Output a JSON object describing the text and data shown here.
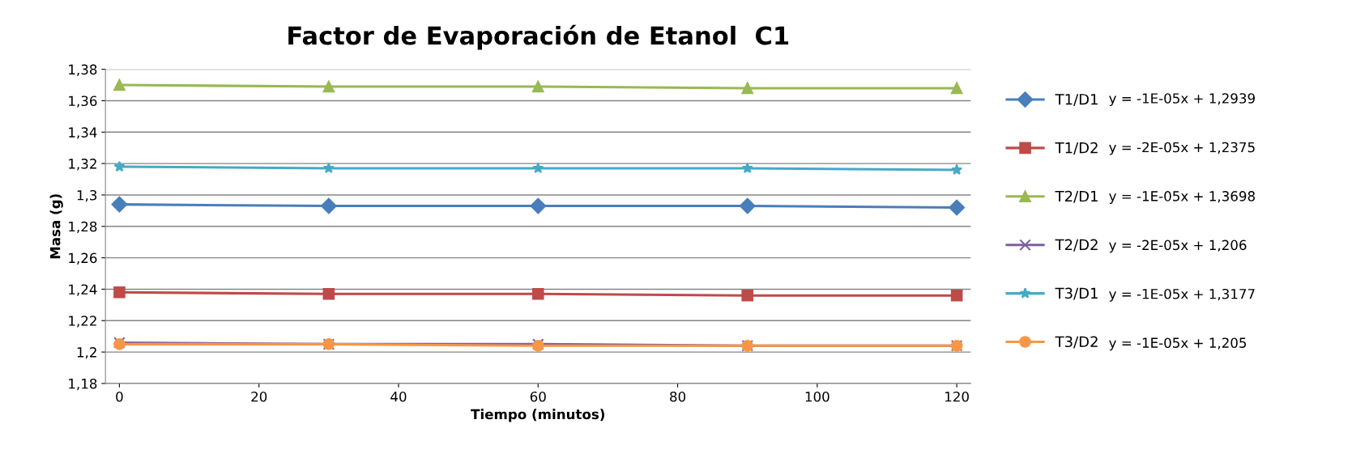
{
  "chart_data": {
    "type": "line",
    "title": "Factor de Evaporación de Etanol  C1",
    "xlabel": "Tiempo (minutos)",
    "ylabel": "Masa (g)",
    "x": [
      0,
      30,
      60,
      90,
      120
    ],
    "series": [
      {
        "name": "T1/D1",
        "color": "#4a7ebb",
        "marker": "diamond",
        "values": [
          1.294,
          1.293,
          1.293,
          1.293,
          1.292
        ]
      },
      {
        "name": "T1/D2",
        "color": "#be4b48",
        "marker": "square",
        "values": [
          1.238,
          1.237,
          1.237,
          1.236,
          1.236
        ]
      },
      {
        "name": "T2/D1",
        "color": "#98b954",
        "marker": "triangle",
        "values": [
          1.37,
          1.369,
          1.369,
          1.368,
          1.368
        ]
      },
      {
        "name": "T2/D2",
        "color": "#7d60a0",
        "marker": "cross",
        "values": [
          1.206,
          1.205,
          1.205,
          1.204,
          1.204
        ]
      },
      {
        "name": "T3/D1",
        "color": "#46aac5",
        "marker": "star",
        "values": [
          1.318,
          1.317,
          1.317,
          1.317,
          1.316
        ]
      },
      {
        "name": "T3/D2",
        "color": "#f79646",
        "marker": "circle",
        "values": [
          1.205,
          1.205,
          1.204,
          1.204,
          1.204
        ]
      }
    ],
    "annotations": [
      "y = -1E-05x + 1,2939",
      "y = -2E-05x + 1,2375",
      "y = -1E-05x + 1,3698",
      "y = -2E-05x + 1,206",
      "y = -1E-05x + 1,3177",
      "y = -1E-05x + 1,205"
    ],
    "xlim": [
      -2,
      122
    ],
    "xticks": [
      0,
      20,
      40,
      60,
      80,
      100,
      120
    ],
    "ylim": [
      1.18,
      1.38
    ],
    "yticks": [
      {
        "value": 1.18,
        "label": "1,18"
      },
      {
        "value": 1.2,
        "label": "1,2"
      },
      {
        "value": 1.22,
        "label": "1,22"
      },
      {
        "value": 1.24,
        "label": "1,24"
      },
      {
        "value": 1.26,
        "label": "1,26"
      },
      {
        "value": 1.28,
        "label": "1,28"
      },
      {
        "value": 1.3,
        "label": "1,3"
      },
      {
        "value": 1.32,
        "label": "1,32"
      },
      {
        "value": 1.34,
        "label": "1,34"
      },
      {
        "value": 1.36,
        "label": "1,36"
      },
      {
        "value": 1.38,
        "label": "1,38"
      }
    ],
    "grid": "y",
    "legend": "right",
    "line_style": "solid"
  }
}
